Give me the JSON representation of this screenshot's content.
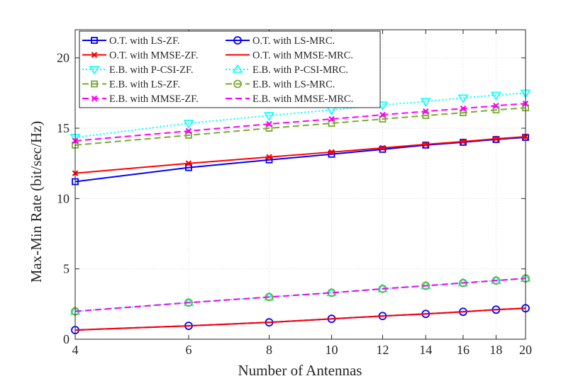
{
  "chart_data": {
    "type": "line",
    "xlabel": "Number of Antennas",
    "ylabel": "Max-Min Rate (bit/sec/Hz)",
    "xscale": "log",
    "xlim": [
      4,
      20
    ],
    "ylim": [
      0,
      22
    ],
    "xticks": [
      4,
      6,
      8,
      10,
      12,
      14,
      16,
      18,
      20
    ],
    "yticks": [
      0,
      5,
      10,
      15,
      20
    ],
    "grid": true,
    "legend_position": "top-left, two columns",
    "x": [
      4,
      6,
      8,
      10,
      12,
      14,
      16,
      18,
      20
    ],
    "series": [
      {
        "name": "O.T. with LS-ZF.",
        "color": "#0000ff",
        "marker": "square",
        "dash": "solid",
        "values": [
          11.2,
          12.2,
          12.75,
          13.15,
          13.5,
          13.8,
          14.0,
          14.2,
          14.35
        ]
      },
      {
        "name": "O.T. with MMSE-ZF.",
        "color": "#ff0000",
        "marker": "x",
        "dash": "solid",
        "values": [
          11.8,
          12.5,
          12.95,
          13.3,
          13.6,
          13.85,
          14.05,
          14.25,
          14.4
        ]
      },
      {
        "name": "E.B. with P-CSI-ZF.",
        "color": "#00ffff",
        "marker": "triangle-down",
        "dash": "dotted",
        "values": [
          14.35,
          15.35,
          15.9,
          16.3,
          16.65,
          16.9,
          17.15,
          17.35,
          17.5
        ]
      },
      {
        "name": "E.B. with LS-ZF.",
        "color": "#77ac30",
        "marker": "square",
        "dash": "dashed",
        "values": [
          13.8,
          14.5,
          15.0,
          15.35,
          15.65,
          15.9,
          16.1,
          16.3,
          16.45
        ]
      },
      {
        "name": "E.B. with MMSE-ZF.",
        "color": "#ff00ff",
        "marker": "x",
        "dash": "dashed",
        "values": [
          14.1,
          14.8,
          15.3,
          15.65,
          15.95,
          16.2,
          16.4,
          16.6,
          16.75
        ]
      },
      {
        "name": "O.T. with LS-MRC.",
        "color": "#0000ff",
        "marker": "circle",
        "dash": "solid",
        "values": [
          0.65,
          0.95,
          1.2,
          1.45,
          1.65,
          1.8,
          1.95,
          2.1,
          2.2
        ]
      },
      {
        "name": "O.T. with MMSE-MRC.",
        "color": "#ff0000",
        "marker": "none",
        "dash": "solid",
        "values": [
          0.65,
          0.95,
          1.2,
          1.45,
          1.65,
          1.8,
          1.95,
          2.1,
          2.2
        ]
      },
      {
        "name": "E.B. with P-CSI-MRC.",
        "color": "#00ffff",
        "marker": "triangle-up",
        "dash": "dotted",
        "values": [
          1.98,
          2.6,
          3.0,
          3.3,
          3.58,
          3.8,
          4.0,
          4.17,
          4.32
        ]
      },
      {
        "name": "E.B. with LS-MRC.",
        "color": "#77ac30",
        "marker": "circle",
        "dash": "dashed",
        "values": [
          1.98,
          2.6,
          3.0,
          3.3,
          3.58,
          3.8,
          4.0,
          4.17,
          4.32
        ]
      },
      {
        "name": "E.B. with MMSE-MRC.",
        "color": "#ff00ff",
        "marker": "none",
        "dash": "dashed",
        "values": [
          1.98,
          2.6,
          3.0,
          3.3,
          3.58,
          3.8,
          4.0,
          4.17,
          4.32
        ]
      }
    ]
  }
}
